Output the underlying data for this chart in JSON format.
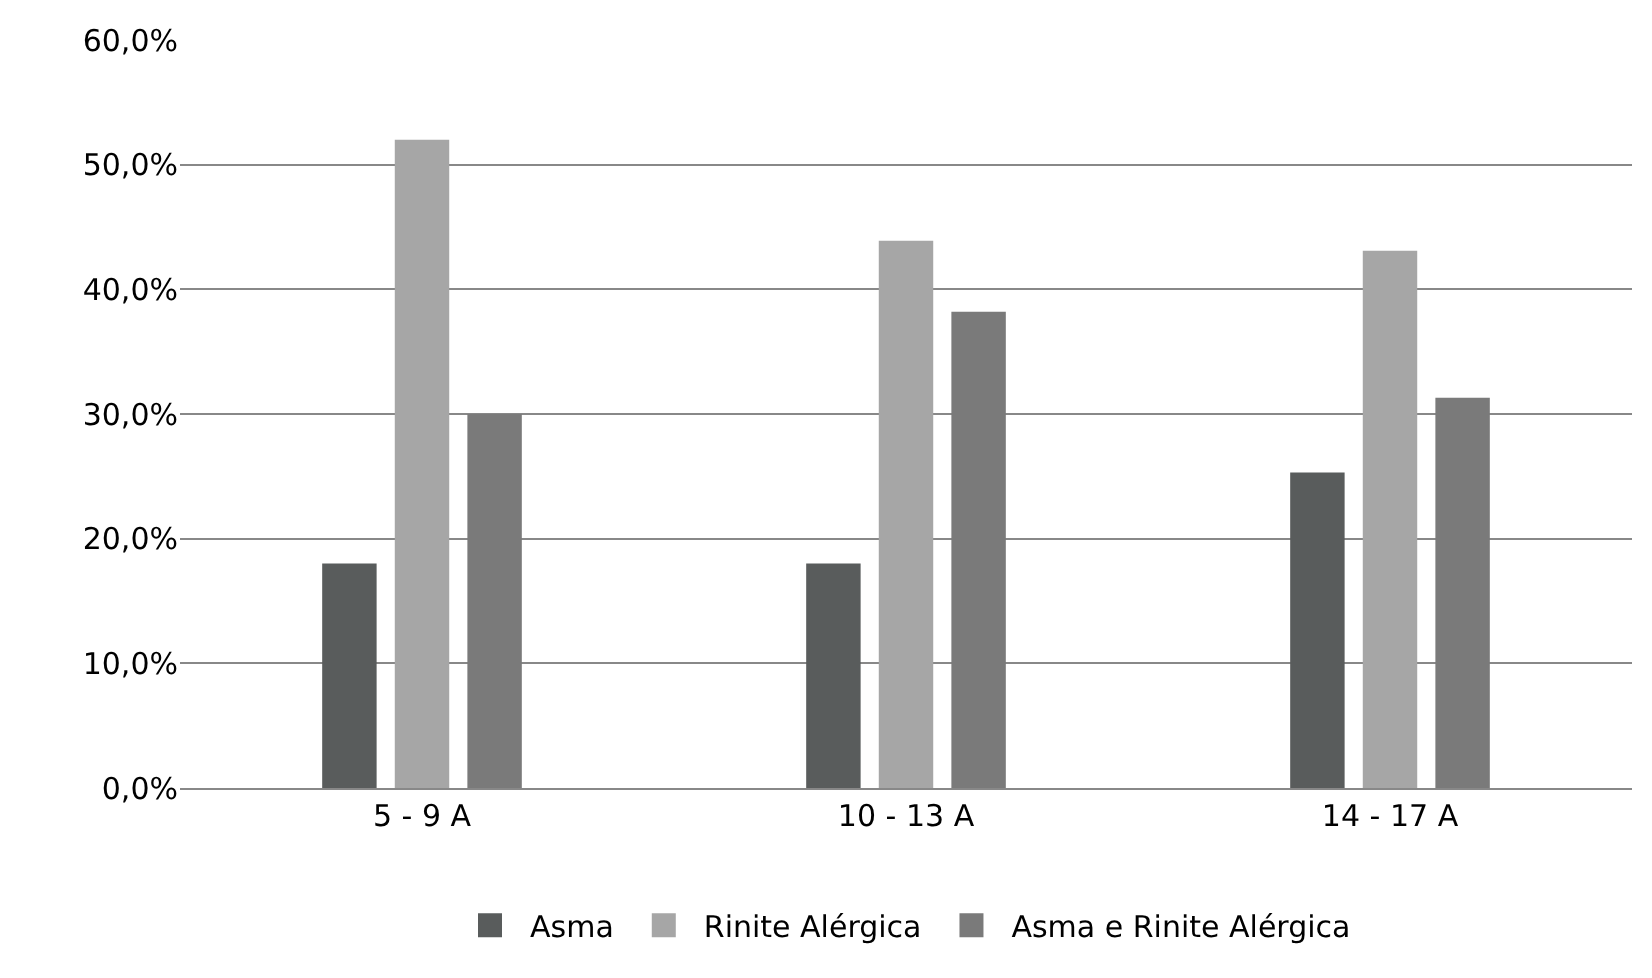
{
  "chart_data": {
    "type": "bar",
    "categories": [
      "5 - 9 A",
      "10 - 13 A",
      "14 - 17 A"
    ],
    "series": [
      {
        "name": "Asma",
        "color": "#595c5c",
        "values": [
          18.0,
          18.0,
          25.3
        ]
      },
      {
        "name": "Rinite Alérgica",
        "color": "#a6a6a6",
        "values": [
          52.0,
          43.9,
          43.1
        ]
      },
      {
        "name": "Asma e Rinite Alérgica",
        "color": "#7a7a7a",
        "values": [
          30.0,
          38.2,
          31.3
        ]
      }
    ],
    "ylim": [
      0,
      60
    ],
    "yticks": [
      {
        "value": 0,
        "label": "0,0%"
      },
      {
        "value": 10,
        "label": "10,0%"
      },
      {
        "value": 20,
        "label": "20,0%"
      },
      {
        "value": 30,
        "label": "30,0%"
      },
      {
        "value": 40,
        "label": "40,0%"
      },
      {
        "value": 50,
        "label": "50,0%"
      },
      {
        "value": 60,
        "label": "60,0%"
      }
    ],
    "grid": "y",
    "legend": "bottom"
  }
}
